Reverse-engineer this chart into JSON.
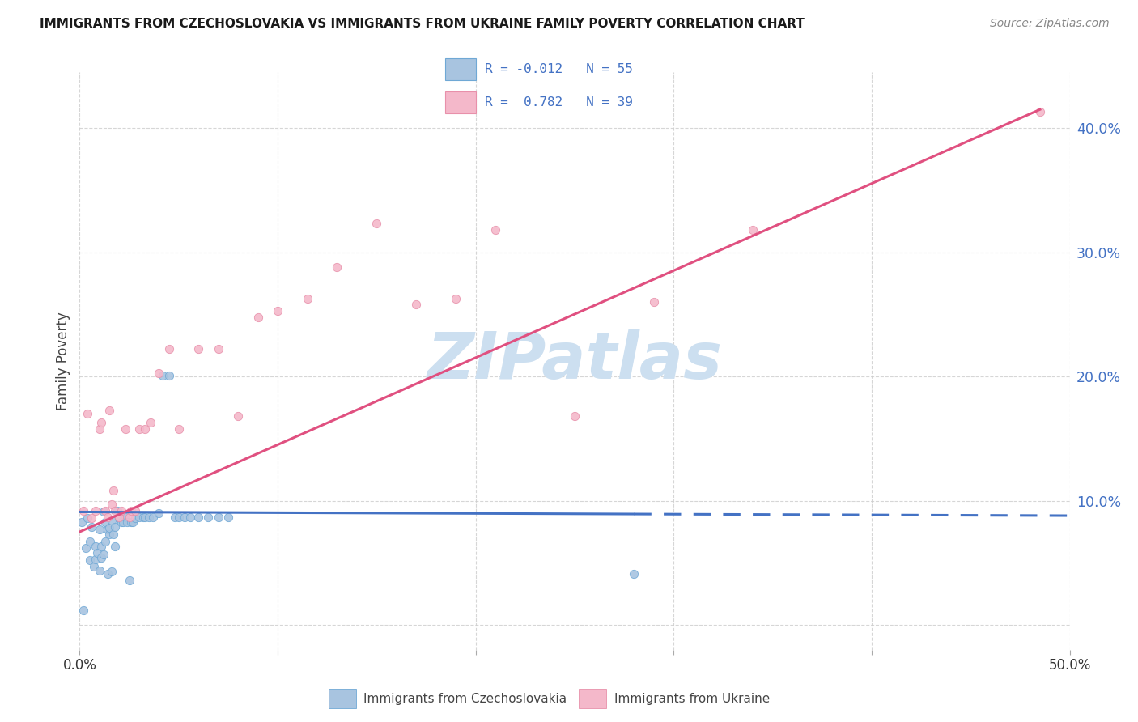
{
  "title": "IMMIGRANTS FROM CZECHOSLOVAKIA VS IMMIGRANTS FROM UKRAINE FAMILY POVERTY CORRELATION CHART",
  "source": "Source: ZipAtlas.com",
  "ylabel": "Family Poverty",
  "xlim": [
    0.0,
    0.5
  ],
  "ylim": [
    -0.02,
    0.445
  ],
  "ytick_vals": [
    0.0,
    0.1,
    0.2,
    0.3,
    0.4
  ],
  "ytick_labels": [
    "",
    "10.0%",
    "20.0%",
    "30.0%",
    "40.0%"
  ],
  "xtick_vals": [
    0.0,
    0.1,
    0.2,
    0.3,
    0.4,
    0.5
  ],
  "xtick_labels": [
    "0.0%",
    "",
    "",
    "",
    "",
    "50.0%"
  ],
  "color_czech_fill": "#a8c4e0",
  "color_czech_edge": "#6fa8d5",
  "color_czech_line": "#4472c4",
  "color_ukraine_fill": "#f4b8ca",
  "color_ukraine_edge": "#e890aa",
  "color_ukraine_line": "#e05080",
  "color_tick_right": "#4472c4",
  "color_grid": "#cccccc",
  "watermark_color": "#ccdff0",
  "czech_line_solid_end": 0.28,
  "ukraine_line_x0": 0.0,
  "ukraine_line_x1": 0.485,
  "ukraine_line_y0": 0.075,
  "ukraine_line_y1": 0.415,
  "czech_line_y0": 0.091,
  "czech_line_y1": 0.088,
  "scatter_czech_x": [
    0.001,
    0.002,
    0.003,
    0.004,
    0.005,
    0.005,
    0.006,
    0.007,
    0.008,
    0.008,
    0.009,
    0.01,
    0.01,
    0.011,
    0.011,
    0.012,
    0.012,
    0.013,
    0.013,
    0.014,
    0.014,
    0.015,
    0.015,
    0.016,
    0.016,
    0.017,
    0.018,
    0.018,
    0.019,
    0.02,
    0.021,
    0.022,
    0.023,
    0.024,
    0.025,
    0.026,
    0.027,
    0.028,
    0.03,
    0.032,
    0.033,
    0.035,
    0.037,
    0.04,
    0.042,
    0.045,
    0.048,
    0.05,
    0.053,
    0.056,
    0.06,
    0.065,
    0.07,
    0.075,
    0.28
  ],
  "scatter_czech_y": [
    0.083,
    0.012,
    0.062,
    0.086,
    0.052,
    0.067,
    0.079,
    0.047,
    0.063,
    0.053,
    0.058,
    0.077,
    0.044,
    0.054,
    0.063,
    0.091,
    0.057,
    0.067,
    0.083,
    0.041,
    0.077,
    0.073,
    0.078,
    0.084,
    0.043,
    0.073,
    0.079,
    0.063,
    0.092,
    0.086,
    0.083,
    0.083,
    0.087,
    0.083,
    0.036,
    0.083,
    0.083,
    0.086,
    0.087,
    0.087,
    0.087,
    0.087,
    0.087,
    0.09,
    0.201,
    0.201,
    0.087,
    0.087,
    0.087,
    0.087,
    0.087,
    0.087,
    0.087,
    0.087,
    0.041
  ],
  "scatter_ukraine_x": [
    0.002,
    0.004,
    0.006,
    0.008,
    0.01,
    0.011,
    0.013,
    0.014,
    0.015,
    0.016,
    0.017,
    0.018,
    0.02,
    0.021,
    0.023,
    0.025,
    0.026,
    0.028,
    0.03,
    0.033,
    0.036,
    0.04,
    0.045,
    0.05,
    0.06,
    0.07,
    0.08,
    0.09,
    0.1,
    0.115,
    0.13,
    0.15,
    0.17,
    0.19,
    0.21,
    0.25,
    0.29,
    0.34,
    0.485
  ],
  "scatter_ukraine_y": [
    0.092,
    0.17,
    0.086,
    0.092,
    0.158,
    0.163,
    0.092,
    0.087,
    0.173,
    0.097,
    0.108,
    0.092,
    0.087,
    0.092,
    0.158,
    0.087,
    0.092,
    0.092,
    0.158,
    0.158,
    0.163,
    0.203,
    0.222,
    0.158,
    0.222,
    0.222,
    0.168,
    0.248,
    0.253,
    0.263,
    0.288,
    0.323,
    0.258,
    0.263,
    0.318,
    0.168,
    0.26,
    0.318,
    0.413
  ]
}
